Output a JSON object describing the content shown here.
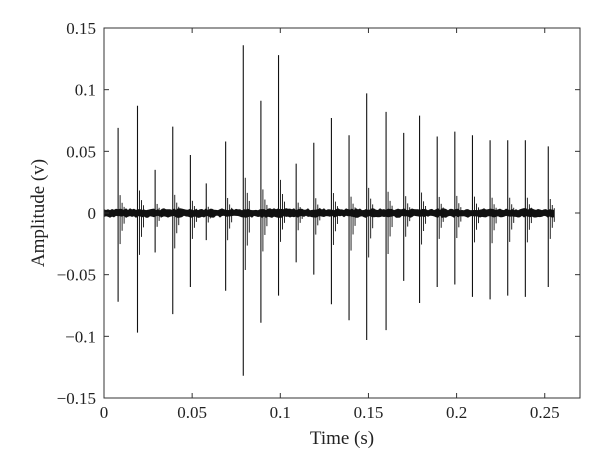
{
  "chart_data": {
    "type": "line",
    "title": "",
    "xlabel": "Time (s)",
    "ylabel": "Amplitude (v)",
    "xlim": [
      0,
      0.27
    ],
    "ylim": [
      -0.15,
      0.15
    ],
    "x_ticks": [
      0,
      0.05,
      0.1,
      0.15,
      0.2,
      0.25
    ],
    "x_tick_labels": [
      "0",
      "0.05",
      "0.1",
      "0.15",
      "0.2",
      "0.25"
    ],
    "y_ticks": [
      0.15,
      0.1,
      0.05,
      0,
      -0.05,
      -0.1,
      -0.15
    ],
    "y_tick_labels": [
      "0.15",
      "0.1",
      "0.05",
      "0",
      "−0.05",
      "−0.1",
      "−0.15"
    ],
    "grid": false,
    "legend": "none",
    "signal_span": [
      0,
      0.256
    ],
    "baseline_noise_amplitude": 0.004,
    "line_color": "#111111",
    "spikes": [
      {
        "t": 0.008,
        "peak": 0.069,
        "trough": -0.072
      },
      {
        "t": 0.019,
        "peak": 0.087,
        "trough": -0.097
      },
      {
        "t": 0.029,
        "peak": 0.035,
        "trough": -0.032
      },
      {
        "t": 0.039,
        "peak": 0.07,
        "trough": -0.082
      },
      {
        "t": 0.049,
        "peak": 0.047,
        "trough": -0.06
      },
      {
        "t": 0.058,
        "peak": 0.024,
        "trough": -0.022
      },
      {
        "t": 0.069,
        "peak": 0.058,
        "trough": -0.063
      },
      {
        "t": 0.079,
        "peak": 0.136,
        "trough": -0.132
      },
      {
        "t": 0.089,
        "peak": 0.091,
        "trough": -0.089
      },
      {
        "t": 0.099,
        "peak": 0.128,
        "trough": -0.067
      },
      {
        "t": 0.109,
        "peak": 0.04,
        "trough": -0.04
      },
      {
        "t": 0.119,
        "peak": 0.057,
        "trough": -0.05
      },
      {
        "t": 0.129,
        "peak": 0.077,
        "trough": -0.074
      },
      {
        "t": 0.139,
        "peak": 0.063,
        "trough": -0.087
      },
      {
        "t": 0.149,
        "peak": 0.097,
        "trough": -0.103
      },
      {
        "t": 0.16,
        "peak": 0.082,
        "trough": -0.095
      },
      {
        "t": 0.17,
        "peak": 0.065,
        "trough": -0.055
      },
      {
        "t": 0.179,
        "peak": 0.079,
        "trough": -0.073
      },
      {
        "t": 0.189,
        "peak": 0.062,
        "trough": -0.06
      },
      {
        "t": 0.199,
        "peak": 0.066,
        "trough": -0.058
      },
      {
        "t": 0.209,
        "peak": 0.063,
        "trough": -0.068
      },
      {
        "t": 0.219,
        "peak": 0.059,
        "trough": -0.07
      },
      {
        "t": 0.229,
        "peak": 0.059,
        "trough": -0.067
      },
      {
        "t": 0.239,
        "peak": 0.059,
        "trough": -0.068
      },
      {
        "t": 0.252,
        "peak": 0.054,
        "trough": -0.06
      }
    ]
  }
}
